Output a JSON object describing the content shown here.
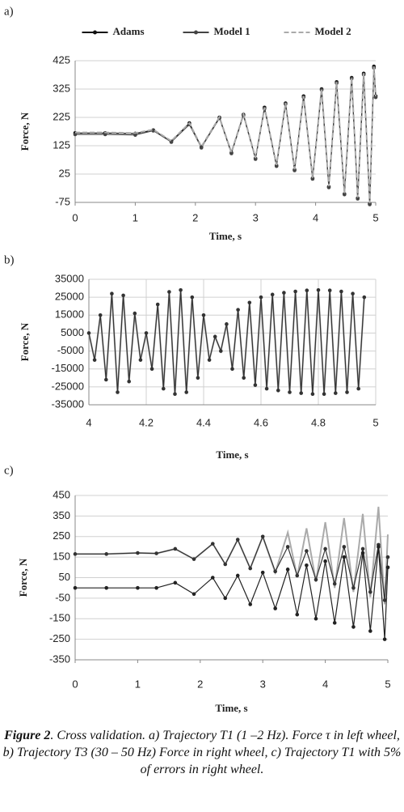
{
  "chart_data": [
    {
      "type": "line",
      "label": "a)",
      "xlabel": "Time, s",
      "ylabel": "Force, N",
      "xlim": [
        0,
        5
      ],
      "xticks": [
        0,
        1,
        2,
        3,
        4,
        5
      ],
      "ylim": [
        -75,
        425
      ],
      "yticks": [
        -75,
        25,
        125,
        225,
        325,
        425
      ],
      "grid": "y",
      "legend": "top",
      "x": [
        0,
        0.5,
        1.0,
        1.3,
        1.6,
        1.9,
        2.1,
        2.4,
        2.6,
        2.8,
        3.0,
        3.15,
        3.35,
        3.5,
        3.65,
        3.8,
        3.95,
        4.1,
        4.22,
        4.35,
        4.48,
        4.6,
        4.7,
        4.8,
        4.9,
        4.97,
        5.0
      ],
      "series": [
        {
          "name": "Adams",
          "color": "#111111",
          "marker": "circle",
          "dash": false,
          "values": [
            170,
            170,
            168,
            180,
            140,
            205,
            120,
            225,
            100,
            235,
            80,
            260,
            55,
            275,
            40,
            300,
            10,
            325,
            -20,
            350,
            -45,
            365,
            -60,
            380,
            -80,
            405,
            300
          ]
        },
        {
          "name": "Model 1",
          "color": "#444444",
          "marker": "circle",
          "dash": false,
          "values": [
            165,
            165,
            163,
            178,
            138,
            200,
            118,
            222,
            98,
            232,
            78,
            256,
            53,
            272,
            38,
            296,
            8,
            322,
            -22,
            346,
            -47,
            362,
            -62,
            376,
            -82,
            400,
            296
          ]
        },
        {
          "name": "Model 2",
          "color": "#aaaaaa",
          "marker": "none",
          "dash": true,
          "values": [
            172,
            172,
            170,
            182,
            142,
            205,
            122,
            226,
            102,
            236,
            82,
            260,
            57,
            276,
            42,
            300,
            12,
            326,
            -18,
            350,
            -43,
            366,
            -58,
            381,
            -78,
            404,
            300
          ]
        }
      ]
    },
    {
      "type": "line",
      "label": "b)",
      "xlabel": "Time, s",
      "ylabel": "Force, N",
      "xlim": [
        4,
        5
      ],
      "xticks": [
        4,
        4.2,
        4.4,
        4.6,
        4.8,
        5
      ],
      "ylim": [
        -35000,
        35000
      ],
      "yticks": [
        -35000,
        -25000,
        -15000,
        -5000,
        5000,
        15000,
        25000,
        35000
      ],
      "grid": "both",
      "x": [
        4.0,
        4.02,
        4.04,
        4.06,
        4.08,
        4.1,
        4.12,
        4.14,
        4.16,
        4.18,
        4.2,
        4.22,
        4.24,
        4.26,
        4.28,
        4.3,
        4.32,
        4.34,
        4.36,
        4.38,
        4.4,
        4.42,
        4.44,
        4.46,
        4.48,
        4.5,
        4.52,
        4.54,
        4.56,
        4.58,
        4.6,
        4.62,
        4.64,
        4.66,
        4.68,
        4.7,
        4.72,
        4.74,
        4.76,
        4.78,
        4.8,
        4.82,
        4.84,
        4.86,
        4.88,
        4.9,
        4.92,
        4.94,
        4.96
      ],
      "series": [
        {
          "color": "#aaaaaa",
          "marker": "none",
          "dash": false,
          "values": [
            5000,
            -10000,
            15000,
            -21000,
            27000,
            -28000,
            26000,
            -22000,
            16000,
            -10000,
            5000,
            -15000,
            21000,
            -26000,
            28000,
            -29000,
            29000,
            -28000,
            25000,
            -20000,
            15000,
            -10000,
            3000,
            -5000,
            10000,
            -15000,
            18000,
            -20000,
            22000,
            -24000,
            25000,
            -26000,
            26500,
            -27000,
            27500,
            -28000,
            28200,
            -28500,
            28800,
            -29000,
            29000,
            -29000,
            28800,
            -28500,
            28200,
            -28000,
            27000,
            -26000,
            25000
          ]
        },
        {
          "color": "#333333",
          "marker": "circle",
          "dash": false,
          "values": [
            5000,
            -10000,
            15000,
            -21000,
            27000,
            -28000,
            26000,
            -22000,
            16000,
            -10000,
            5000,
            -15000,
            21000,
            -26000,
            28000,
            -29000,
            29000,
            -28000,
            25000,
            -20000,
            15000,
            -10000,
            3000,
            -5000,
            10000,
            -15000,
            18000,
            -20000,
            22000,
            -24000,
            25000,
            -26000,
            26500,
            -27000,
            27500,
            -28000,
            28200,
            -28500,
            28800,
            -29000,
            29000,
            -29000,
            28800,
            -28500,
            28200,
            -28000,
            27000,
            -26000,
            25000
          ]
        }
      ]
    },
    {
      "type": "line",
      "label": "c)",
      "xlabel": "Time, s",
      "ylabel": "Force, N",
      "xlim": [
        0,
        5
      ],
      "xticks": [
        0,
        1,
        2,
        3,
        4,
        5
      ],
      "ylim": [
        -350,
        450
      ],
      "yticks": [
        -350,
        -250,
        -150,
        -50,
        50,
        150,
        250,
        350,
        450
      ],
      "grid": "y",
      "x": [
        0,
        0.5,
        1.0,
        1.3,
        1.6,
        1.9,
        2.2,
        2.4,
        2.6,
        2.8,
        3.0,
        3.2,
        3.4,
        3.55,
        3.7,
        3.85,
        4.0,
        4.15,
        4.3,
        4.45,
        4.6,
        4.72,
        4.85,
        4.95,
        5.0
      ],
      "series": [
        {
          "color": "#aaaaaa",
          "marker": "none",
          "dash": false,
          "values": [
            165,
            165,
            170,
            168,
            190,
            140,
            215,
            115,
            235,
            95,
            250,
            75,
            270,
            55,
            290,
            30,
            320,
            0,
            340,
            -20,
            360,
            -45,
            395,
            -80,
            260
          ]
        },
        {
          "color": "#333333",
          "marker": "circle",
          "dash": false,
          "values": [
            165,
            165,
            170,
            168,
            190,
            140,
            215,
            115,
            235,
            95,
            250,
            80,
            200,
            60,
            180,
            40,
            190,
            20,
            200,
            0,
            190,
            -20,
            210,
            -60,
            150
          ]
        },
        {
          "color": "#222222",
          "marker": "circle",
          "dash": false,
          "values": [
            0,
            0,
            0,
            0,
            25,
            -30,
            50,
            -50,
            60,
            -80,
            75,
            -100,
            90,
            -130,
            110,
            -150,
            130,
            -170,
            150,
            -190,
            170,
            -210,
            200,
            -250,
            100
          ]
        }
      ]
    }
  ],
  "caption": {
    "lead": "Figure 2",
    "text": ". Cross validation. a) Trajectory T1 (1 –2 Hz). Force τ in left wheel, b) Trajectory T3 (30 – 50 Hz) Force in right wheel, c) Trajectory T1 with 5% of errors in right wheel."
  }
}
